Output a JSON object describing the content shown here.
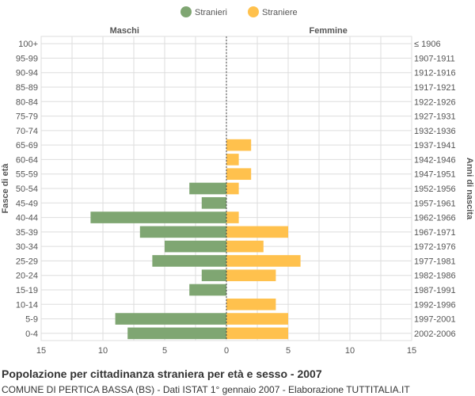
{
  "chart_data": {
    "type": "bar",
    "orientation": "horizontal-pyramid",
    "legend": {
      "position": "top-center",
      "items": [
        {
          "label": "Stranieri",
          "color": "#7fa672"
        },
        {
          "label": "Straniere",
          "color": "#ffc14d"
        }
      ]
    },
    "left_header": "Maschi",
    "right_header": "Femmine",
    "ylabel_left": "Fasce di età",
    "ylabel_right": "Anni di nascita",
    "x_ticks": [
      15,
      10,
      5,
      0,
      5,
      10,
      15
    ],
    "xlim": [
      -15,
      15
    ],
    "grid": true,
    "categories": [
      "100+",
      "95-99",
      "90-94",
      "85-89",
      "80-84",
      "75-79",
      "70-74",
      "65-69",
      "60-64",
      "55-59",
      "50-54",
      "45-49",
      "40-44",
      "35-39",
      "30-34",
      "25-29",
      "20-24",
      "15-19",
      "10-14",
      "5-9",
      "0-4"
    ],
    "birth_years": [
      "≤ 1906",
      "1907-1911",
      "1912-1916",
      "1917-1921",
      "1922-1926",
      "1927-1931",
      "1932-1936",
      "1937-1941",
      "1942-1946",
      "1947-1951",
      "1952-1956",
      "1957-1961",
      "1962-1966",
      "1967-1971",
      "1972-1976",
      "1977-1981",
      "1982-1986",
      "1987-1991",
      "1992-1996",
      "1997-2001",
      "2002-2006"
    ],
    "series": [
      {
        "name": "Stranieri",
        "values": [
          0,
          0,
          0,
          0,
          0,
          0,
          0,
          0,
          0,
          0,
          3,
          2,
          11,
          7,
          5,
          6,
          2,
          3,
          0,
          9,
          8
        ]
      },
      {
        "name": "Straniere",
        "values": [
          0,
          0,
          0,
          0,
          0,
          0,
          0,
          2,
          1,
          2,
          1,
          0,
          1,
          5,
          3,
          6,
          4,
          0,
          4,
          5,
          5
        ]
      }
    ]
  },
  "footer": {
    "title": "Popolazione per cittadinanza straniera per età e sesso - 2007",
    "subtitle": "COMUNE DI PERTICA BASSA (BS) - Dati ISTAT 1° gennaio 2007 - Elaborazione TUTTITALIA.IT"
  },
  "colors": {
    "male": "#7fa672",
    "female": "#ffc14d",
    "grid": "#dddddd",
    "text": "#555555"
  }
}
